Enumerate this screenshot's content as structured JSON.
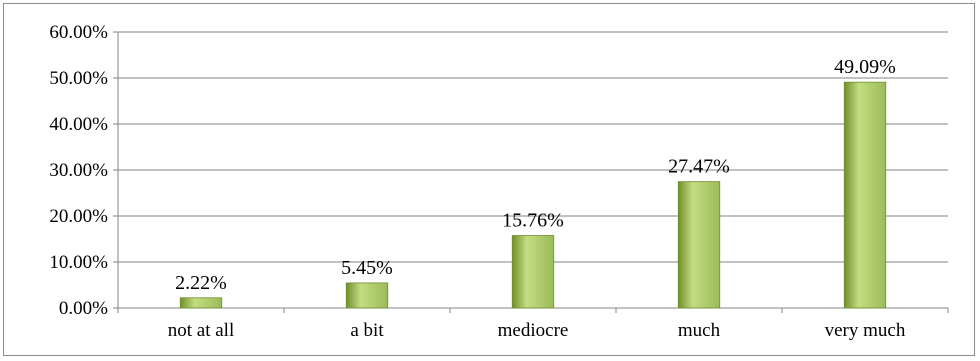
{
  "chart_data": {
    "type": "bar",
    "categories": [
      "not at all",
      "a bit",
      "mediocre",
      "much",
      "very much"
    ],
    "values": [
      2.22,
      5.45,
      15.76,
      27.47,
      49.09
    ],
    "data_labels": [
      "2.22%",
      "5.45%",
      "15.76%",
      "27.47%",
      "49.09%"
    ],
    "ylim": [
      0,
      60
    ],
    "yticks": [
      0,
      10,
      20,
      30,
      40,
      50,
      60
    ],
    "ytick_labels": [
      "0.00%",
      "10.00%",
      "20.00%",
      "30.00%",
      "40.00%",
      "50.00%",
      "60.00%"
    ],
    "title": "",
    "xlabel": "",
    "ylabel": "",
    "grid": true,
    "legend": "none",
    "colors": {
      "bar": "#9bbb59",
      "bar_dark": "#6f8f2a",
      "bar_light": "#c4dc82",
      "gridline": "#868686",
      "axis": "#868686"
    }
  }
}
